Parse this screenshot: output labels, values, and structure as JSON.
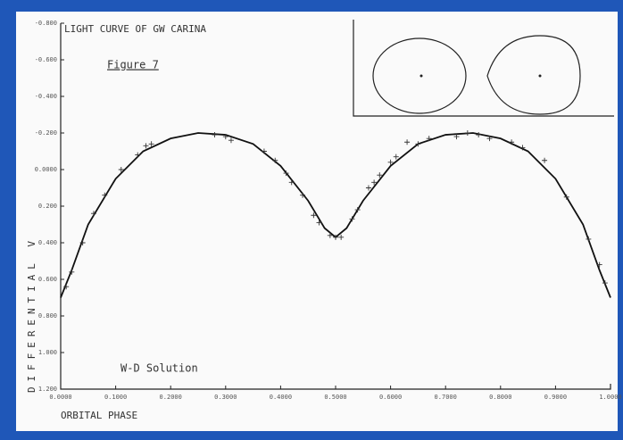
{
  "chart_data": {
    "type": "line",
    "title": "LIGHT CURVE OF GW CARINA",
    "subtitle": "Figure 7",
    "annotation": "W-D Solution",
    "x_label": "ORBITAL PHASE",
    "y_label": "DIFFERENTIAL V",
    "xlim": [
      0,
      1
    ],
    "ylim": [
      -0.8,
      1.2
    ],
    "y_inverted": true,
    "xticks": [
      {
        "value": 0,
        "label": "0.0000"
      },
      {
        "value": 0.1,
        "label": "0.1000"
      },
      {
        "value": 0.2,
        "label": "0.2000"
      },
      {
        "value": 0.3,
        "label": "0.3000"
      },
      {
        "value": 0.4,
        "label": "0.4000"
      },
      {
        "value": 0.5,
        "label": "0.5000"
      },
      {
        "value": 0.6,
        "label": "0.6000"
      },
      {
        "value": 0.7,
        "label": "0.7000"
      },
      {
        "value": 0.8,
        "label": "0.8000"
      },
      {
        "value": 0.9,
        "label": "0.9000"
      },
      {
        "value": 1,
        "label": "1.0000"
      }
    ],
    "yticks": [
      {
        "value": -0.8,
        "label": "-0.800"
      },
      {
        "value": -0.6,
        "label": "-0.600"
      },
      {
        "value": -0.4,
        "label": "-0.400"
      },
      {
        "value": -0.2,
        "label": "-0.200"
      },
      {
        "value": 0,
        "label": "0.0000"
      },
      {
        "value": 0.2,
        "label": "0.200"
      },
      {
        "value": 0.4,
        "label": "0.400"
      },
      {
        "value": 0.6,
        "label": "0.600"
      },
      {
        "value": 0.8,
        "label": "0.800"
      },
      {
        "value": 1,
        "label": "1.000"
      },
      {
        "value": 1.2,
        "label": "1.200"
      }
    ],
    "series": [
      {
        "style": "line",
        "color": "#111111",
        "x": [
          0,
          0.02,
          0.05,
          0.1,
          0.15,
          0.2,
          0.25,
          0.3,
          0.35,
          0.4,
          0.45,
          0.48,
          0.5,
          0.52,
          0.55,
          0.6,
          0.65,
          0.7,
          0.75,
          0.8,
          0.85,
          0.9,
          0.95,
          0.98,
          1
        ],
        "values": [
          0.7,
          0.55,
          0.3,
          0.05,
          -0.1,
          -0.17,
          -0.2,
          -0.19,
          -0.14,
          -0.02,
          0.17,
          0.32,
          0.37,
          0.32,
          0.17,
          -0.02,
          -0.14,
          -0.19,
          -0.2,
          -0.17,
          -0.1,
          0.05,
          0.3,
          0.55,
          0.7
        ]
      },
      {
        "style": "marker",
        "color": "#333333",
        "x": [
          0.01,
          0.02,
          0.04,
          0.06,
          0.08,
          0.11,
          0.14,
          0.155,
          0.165,
          0.28,
          0.3,
          0.31,
          0.37,
          0.39,
          0.41,
          0.42,
          0.44,
          0.46,
          0.47,
          0.49,
          0.5,
          0.51,
          0.53,
          0.54,
          0.56,
          0.57,
          0.58,
          0.6,
          0.61,
          0.63,
          0.65,
          0.67,
          0.72,
          0.74,
          0.76,
          0.78,
          0.82,
          0.84,
          0.88,
          0.92,
          0.96,
          0.98,
          0.99
        ],
        "values": [
          0.64,
          0.56,
          0.4,
          0.24,
          0.14,
          0,
          -0.08,
          -0.13,
          -0.14,
          -0.19,
          -0.18,
          -0.16,
          -0.1,
          -0.05,
          0.02,
          0.07,
          0.14,
          0.25,
          0.29,
          0.36,
          0.37,
          0.37,
          0.27,
          0.22,
          0.1,
          0.07,
          0.03,
          -0.04,
          -0.07,
          -0.15,
          -0.14,
          -0.17,
          -0.18,
          -0.2,
          -0.19,
          -0.17,
          -0.15,
          -0.12,
          -0.05,
          0.15,
          0.38,
          0.52,
          0.62
        ]
      }
    ]
  }
}
